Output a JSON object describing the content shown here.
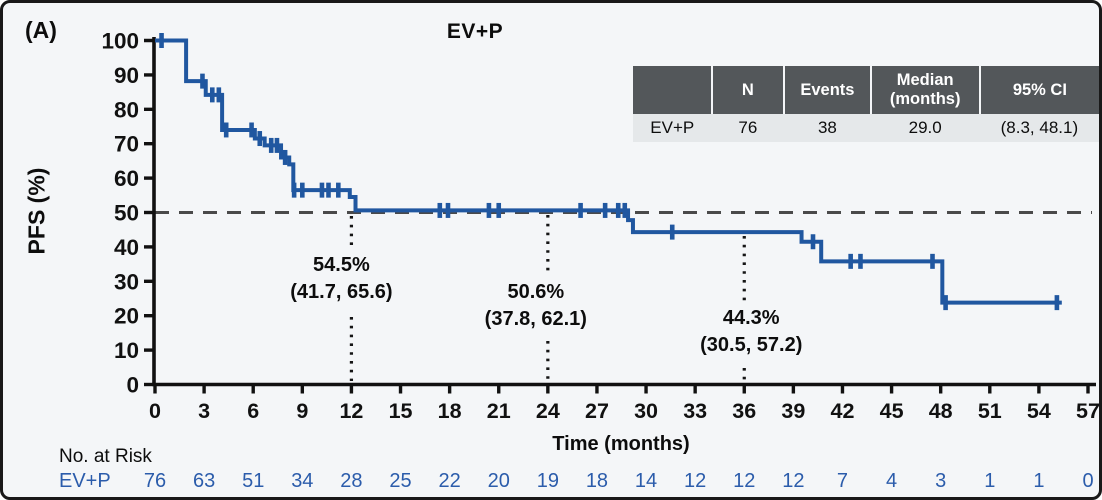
{
  "chart_data": {
    "type": "line",
    "subtype": "kaplan-meier-step",
    "panel_label": "(A)",
    "title": "EV+P",
    "xlabel": "Time (months)",
    "ylabel": "PFS (%)",
    "xlim": [
      0,
      57
    ],
    "ylim": [
      0,
      100
    ],
    "xticks": [
      0,
      3,
      6,
      9,
      12,
      15,
      18,
      21,
      24,
      27,
      30,
      33,
      36,
      39,
      42,
      45,
      48,
      51,
      54,
      57
    ],
    "yticks": [
      0,
      10,
      20,
      30,
      40,
      50,
      60,
      70,
      80,
      90,
      100
    ],
    "reference_line": {
      "y": 50,
      "style": "dashed",
      "color": "#4a4a4a"
    },
    "series": [
      {
        "name": "EV+P",
        "color": "#2057a0",
        "steps": [
          [
            0,
            100
          ],
          [
            1.9,
            88.2
          ],
          [
            3.1,
            84.2
          ],
          [
            4.1,
            74
          ],
          [
            6.1,
            71.5
          ],
          [
            6.7,
            69.5
          ],
          [
            7.7,
            66
          ],
          [
            8.2,
            64
          ],
          [
            8.45,
            56.5
          ],
          [
            11.9,
            54.5
          ],
          [
            12.25,
            50.6
          ],
          [
            28.9,
            47.8
          ],
          [
            29.2,
            44.3
          ],
          [
            39.5,
            41.5
          ],
          [
            40.7,
            35.8
          ],
          [
            48.1,
            23.8
          ]
        ],
        "end_time": 55.4,
        "censor_marks": [
          [
            0.4,
            100
          ],
          [
            2.9,
            88.2
          ],
          [
            3.5,
            84.2
          ],
          [
            3.9,
            84.2
          ],
          [
            4.35,
            74
          ],
          [
            5.9,
            74
          ],
          [
            6.4,
            71.5
          ],
          [
            7.1,
            69.5
          ],
          [
            7.45,
            69.5
          ],
          [
            7.95,
            66
          ],
          [
            8.5,
            56.5
          ],
          [
            9.0,
            56.5
          ],
          [
            10.2,
            56.5
          ],
          [
            10.6,
            56.5
          ],
          [
            11.2,
            56.5
          ],
          [
            17.4,
            50.6
          ],
          [
            17.9,
            50.6
          ],
          [
            20.4,
            50.6
          ],
          [
            21.0,
            50.6
          ],
          [
            26.0,
            50.6
          ],
          [
            27.5,
            50.6
          ],
          [
            28.3,
            50.6
          ],
          [
            28.7,
            50.6
          ],
          [
            31.6,
            44.3
          ],
          [
            40.2,
            41.5
          ],
          [
            42.5,
            35.8
          ],
          [
            43.1,
            35.8
          ],
          [
            47.5,
            35.8
          ],
          [
            48.3,
            23.8
          ],
          [
            55.1,
            23.8
          ]
        ]
      }
    ],
    "landmarks": [
      {
        "time": 12,
        "value_label": "54.5%",
        "ci_label": "(41.7, 65.6)"
      },
      {
        "time": 24,
        "value_label": "50.6%",
        "ci_label": "(37.8, 62.1)"
      },
      {
        "time": 36,
        "value_label": "44.3%",
        "ci_label": "(30.5, 57.2)"
      }
    ]
  },
  "summary_table": {
    "headers": [
      "",
      "N",
      "Events",
      "Median\n(months)",
      "95% CI"
    ],
    "rows": [
      [
        "EV+P",
        "76",
        "38",
        "29.0",
        "(8.3, 48.1)"
      ]
    ],
    "header_bg": "#53575a",
    "row_bg": "#e5e8ea"
  },
  "at_risk": {
    "title": "No. at Risk",
    "groups": [
      {
        "name": "EV+P",
        "counts": [
          "76",
          "63",
          "51",
          "34",
          "28",
          "25",
          "22",
          "20",
          "19",
          "18",
          "14",
          "12",
          "12",
          "12",
          "7",
          "4",
          "3",
          "1",
          "1",
          "0"
        ]
      }
    ],
    "text_color": "#2b5cab"
  },
  "colors": {
    "background": "#f4f6f8",
    "axis": "#111111",
    "curve": "#2057a0"
  }
}
